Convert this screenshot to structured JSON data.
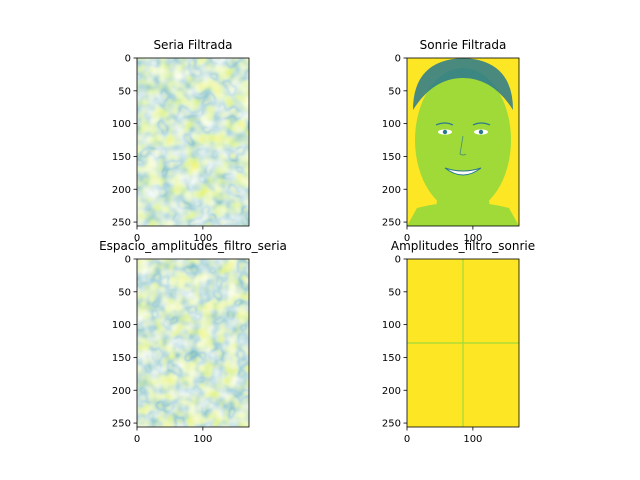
{
  "figure": {
    "background": "#ffffff"
  },
  "chart_data": [
    {
      "type": "heatmap",
      "title": "Seria Filtrada",
      "image_shape": [
        256,
        170
      ],
      "colormap": "viridis",
      "dominant_colors": [
        "#9dd93b",
        "#e5e419",
        "#2a788e"
      ],
      "content": "noise",
      "xticks": [
        0,
        100
      ],
      "yticks": [
        0,
        50,
        100,
        150,
        200,
        250
      ],
      "xlim": [
        0,
        170
      ],
      "ylim": [
        256,
        0
      ]
    },
    {
      "type": "heatmap",
      "title": "Sonrie Filtrada",
      "image_shape": [
        256,
        170
      ],
      "colormap": "viridis",
      "dominant_colors": [
        "#fde725",
        "#a0da39",
        "#2a788e"
      ],
      "content": "face",
      "xticks": [
        0,
        100
      ],
      "yticks": [
        0,
        50,
        100,
        150,
        200,
        250
      ],
      "xlim": [
        0,
        170
      ],
      "ylim": [
        256,
        0
      ]
    },
    {
      "type": "heatmap",
      "title": "Espacio_amplitudes_filtro_seria",
      "image_shape": [
        256,
        170
      ],
      "colormap": "viridis",
      "dominant_colors": [
        "#a0da39",
        "#d8e219",
        "#2a788e"
      ],
      "content": "noise",
      "xticks": [
        0,
        100
      ],
      "yticks": [
        0,
        50,
        100,
        150,
        200,
        250
      ],
      "xlim": [
        0,
        170
      ],
      "ylim": [
        256,
        0
      ]
    },
    {
      "type": "heatmap",
      "title": "Amplitudes_filtro_sonrie",
      "image_shape": [
        256,
        170
      ],
      "colormap": "viridis",
      "dominant_colors": [
        "#fde725",
        "#a0da39",
        "#2a788e"
      ],
      "content": "face-quadrants",
      "xticks": [
        0,
        100
      ],
      "yticks": [
        0,
        50,
        100,
        150,
        200,
        250
      ],
      "xlim": [
        0,
        170
      ],
      "ylim": [
        256,
        0
      ]
    }
  ]
}
